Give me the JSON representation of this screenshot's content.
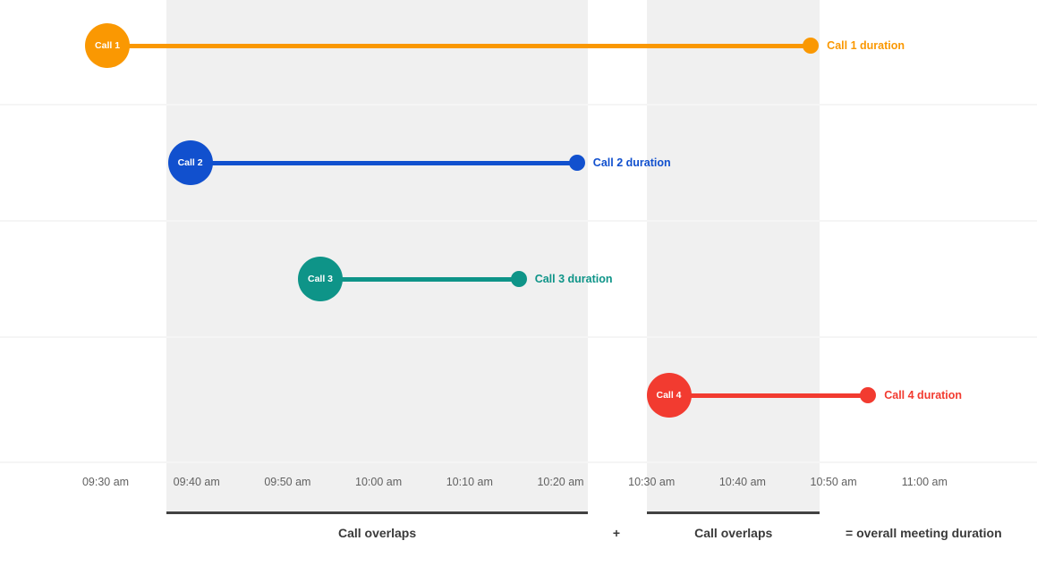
{
  "chart_data": {
    "type": "timeline",
    "title": "",
    "x_axis": {
      "tick_labels": [
        "09:30 am",
        "09:40 am",
        "09:50 am",
        "10:00 am",
        "10:10 am",
        "10:20 am",
        "10:30 am",
        "10:40 am",
        "10:50 am",
        "11:00 am"
      ],
      "tick_minutes": [
        0,
        10,
        20,
        30,
        40,
        50,
        60,
        70,
        80,
        90
      ],
      "axis_start": "09:30 am",
      "axis_end": "11:00 am",
      "grid": "horizontal-only"
    },
    "calls": [
      {
        "name": "Call 1",
        "duration_label": "Call 1 duration",
        "start": "09:30 am",
        "end": "10:47 am",
        "start_min": 0.2,
        "end_min": 77.5,
        "color": "#FA9802"
      },
      {
        "name": "Call 2",
        "duration_label": "Call 2 duration",
        "start": "09:39 am",
        "end": "10:22 am",
        "start_min": 9.3,
        "end_min": 51.8,
        "color": "#1150CE"
      },
      {
        "name": "Call 3",
        "duration_label": "Call 3 duration",
        "start": "09:54 am",
        "end": "10:15 am",
        "start_min": 23.6,
        "end_min": 45.4,
        "color": "#0E9488"
      },
      {
        "name": "Call 4",
        "duration_label": "Call 4 duration",
        "start": "10:32 am",
        "end": "10:54 am",
        "start_min": 61.9,
        "end_min": 83.8,
        "color": "#F23B30"
      }
    ],
    "overlap_regions": [
      {
        "start_min": 6.7,
        "end_min": 53.0
      },
      {
        "start_min": 59.5,
        "end_min": 78.5
      }
    ],
    "annotations": {
      "overlap1_label": "Call overlaps",
      "plus": "+",
      "overlap2_label": "Call overlaps",
      "equals_label": "= overall meeting duration"
    },
    "legend": "none"
  },
  "colors": {
    "region_fill": "#f0f0f0",
    "gridline": "#f5f5f5",
    "bracket": "#424242",
    "tick_text": "#616161",
    "footer_text": "#3a3a3a"
  }
}
